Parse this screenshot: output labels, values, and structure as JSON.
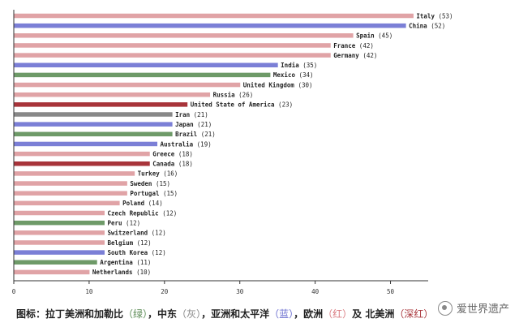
{
  "chart_data": {
    "type": "bar",
    "orientation": "horizontal",
    "xlim": [
      0,
      55
    ],
    "xticks": [
      0,
      10,
      20,
      30,
      40,
      50
    ],
    "grid": false,
    "colors": {
      "green": "#6e9a68",
      "gray": "#888888",
      "blue": "#7b7fd6",
      "red": "#e0a3a6",
      "darkred": "#a8343a"
    },
    "bars": [
      {
        "label": "Italy",
        "value": 53,
        "color": "red"
      },
      {
        "label": "China",
        "value": 52,
        "color": "blue"
      },
      {
        "label": "Spain",
        "value": 45,
        "color": "red"
      },
      {
        "label": "France",
        "value": 42,
        "color": "red"
      },
      {
        "label": "Germany",
        "value": 42,
        "color": "red"
      },
      {
        "label": "India",
        "value": 35,
        "color": "blue"
      },
      {
        "label": "Mexico",
        "value": 34,
        "color": "green"
      },
      {
        "label": "United Kingdom",
        "value": 30,
        "color": "red"
      },
      {
        "label": "Russia",
        "value": 26,
        "color": "red"
      },
      {
        "label": "United State of America",
        "value": 23,
        "color": "darkred"
      },
      {
        "label": "Iran",
        "value": 21,
        "color": "gray"
      },
      {
        "label": "Japan",
        "value": 21,
        "color": "blue"
      },
      {
        "label": "Brazil",
        "value": 21,
        "color": "green"
      },
      {
        "label": "Australia",
        "value": 19,
        "color": "blue"
      },
      {
        "label": "Greece",
        "value": 18,
        "color": "red"
      },
      {
        "label": "Canada",
        "value": 18,
        "color": "darkred"
      },
      {
        "label": "Turkey",
        "value": 16,
        "color": "red"
      },
      {
        "label": "Sweden",
        "value": 15,
        "color": "red"
      },
      {
        "label": "Portugal",
        "value": 15,
        "color": "red"
      },
      {
        "label": "Poland",
        "value": 14,
        "color": "red"
      },
      {
        "label": "Czech Republic",
        "value": 12,
        "color": "red"
      },
      {
        "label": "Peru",
        "value": 12,
        "color": "green"
      },
      {
        "label": "Switzerland",
        "value": 12,
        "color": "red"
      },
      {
        "label": "Belgium",
        "value": 12,
        "color": "red"
      },
      {
        "label": "South Korea",
        "value": 12,
        "color": "blue"
      },
      {
        "label": "Argentina",
        "value": 11,
        "color": "green"
      },
      {
        "label": "Netherlands",
        "value": 10,
        "color": "red"
      }
    ]
  },
  "legend": {
    "prefix": "图标：拉丁美洲和加勒比",
    "green": "（绿）",
    "sep1": "，中东",
    "gray": "（灰）",
    "sep2": "，亚洲和太平洋",
    "blue": "（蓝）",
    "sep3": "，欧洲",
    "red": "（红）",
    "sep4": "及",
    "na": "北美洲",
    "darkred": "（深红）"
  },
  "watermark": {
    "text": "爱世界遗产",
    "icon": "wechat-logo-icon"
  }
}
